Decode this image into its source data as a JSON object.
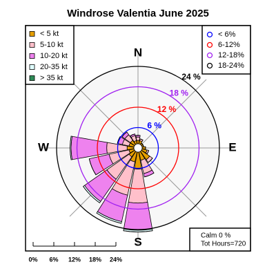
{
  "chart_data": {
    "type": "windrose",
    "title": "Windrose  Valentia June 2025",
    "directions_deg": [
      0,
      22.5,
      45,
      67.5,
      90,
      112.5,
      135,
      157.5,
      180,
      202.5,
      225,
      247.5,
      270,
      292.5,
      315,
      337.5
    ],
    "compass_labels": [
      {
        "value": 0,
        "label": "N"
      },
      {
        "value": 90,
        "label": "E"
      },
      {
        "value": 180,
        "label": "S"
      },
      {
        "value": 270,
        "label": "W"
      }
    ],
    "series": [
      {
        "name": "< 5  kt",
        "color": "#e69f00",
        "values": [
          1,
          1,
          0.5,
          0.5,
          1,
          1.5,
          3,
          2.5,
          5,
          3,
          2,
          1.5,
          2,
          1.5,
          1.5,
          1
        ]
      },
      {
        "name": "5-10 kt",
        "color": "#ffc0cb",
        "values": [
          1,
          0.5,
          0,
          0,
          0,
          0.5,
          1,
          4,
          10,
          10,
          8,
          6,
          6,
          2,
          2,
          1.5
        ]
      },
      {
        "name": "10-20 kt",
        "color": "#ee82ee",
        "values": [
          0.5,
          0,
          0,
          0,
          0,
          0,
          0,
          1,
          8,
          8,
          8,
          6,
          10.5,
          1.5,
          1,
          0.5
        ]
      },
      {
        "name": "20-35 kt",
        "color": "#e0ffff",
        "values": [
          0,
          0,
          0,
          0,
          0,
          0,
          0,
          0,
          0.5,
          0.5,
          0.5,
          0,
          0.3,
          0,
          0,
          0
        ]
      },
      {
        "name": "> 35 kt",
        "color": "#2e8b57",
        "values": [
          0,
          0,
          0,
          0,
          0,
          0,
          0,
          0,
          0,
          0,
          0,
          0,
          0,
          0,
          0,
          0
        ]
      }
    ],
    "rlim": [
      0,
      24
    ],
    "rticks": [
      {
        "value": 6,
        "label": "6 %"
      },
      {
        "value": 12,
        "label": "12 %"
      },
      {
        "value": 18,
        "label": "18 %"
      },
      {
        "value": 24,
        "label": "24 %"
      }
    ],
    "ring_colors": [
      "#0000ff",
      "#ff0000",
      "#a020f0",
      "#000000"
    ],
    "ring_legend": [
      "< 6%",
      "6-12%",
      "12-18%",
      "18-24%"
    ],
    "scale_ticks": [
      {
        "value": 0,
        "label": "0%"
      },
      {
        "value": 6,
        "label": "6%"
      },
      {
        "value": 12,
        "label": "12%"
      },
      {
        "value": 18,
        "label": "18%"
      },
      {
        "value": 24,
        "label": "24%"
      }
    ],
    "calm_label": "Calm 0 %",
    "total_label": "Tot Hours=720"
  }
}
